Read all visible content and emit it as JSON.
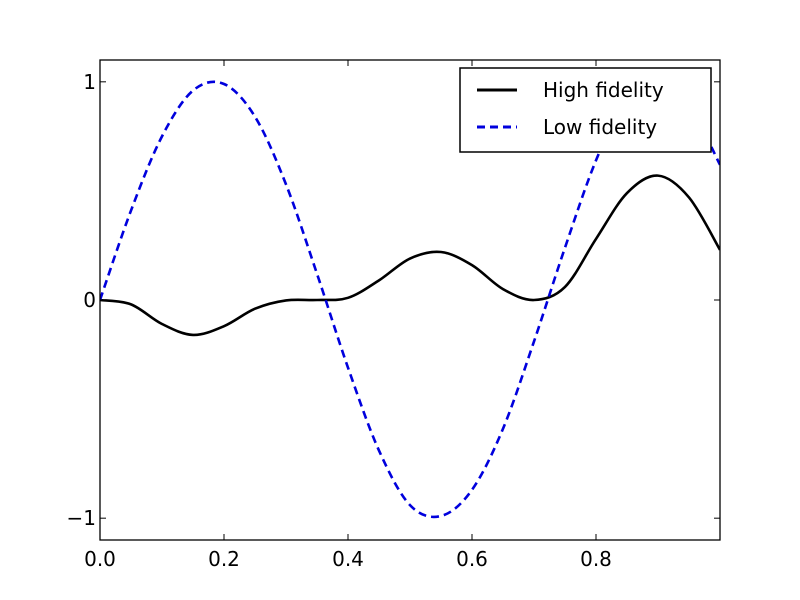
{
  "chart_data": {
    "type": "line",
    "title": "",
    "xlabel": "",
    "ylabel": "",
    "xlim": [
      0.0,
      1.0
    ],
    "ylim": [
      -1.1,
      1.1
    ],
    "grid": false,
    "legend_position": "top-right",
    "x_ticks": [
      {
        "value": 0.0,
        "label": "0.0"
      },
      {
        "value": 0.2,
        "label": "0.2"
      },
      {
        "value": 0.4,
        "label": "0.4"
      },
      {
        "value": 0.6,
        "label": "0.6"
      },
      {
        "value": 0.8,
        "label": "0.8"
      }
    ],
    "y_ticks": [
      {
        "value": -1,
        "label": "−1"
      },
      {
        "value": 0,
        "label": "0"
      },
      {
        "value": 1,
        "label": "1"
      }
    ],
    "x": [
      0.0,
      0.05,
      0.1,
      0.15,
      0.2,
      0.25,
      0.3,
      0.35,
      0.4,
      0.45,
      0.5,
      0.55,
      0.6,
      0.65,
      0.7,
      0.75,
      0.8,
      0.85,
      0.9,
      0.95,
      1.0
    ],
    "series": [
      {
        "name": "High fidelity",
        "color": "#000000",
        "style": "solid",
        "values": [
          0.0,
          -0.02,
          -0.11,
          -0.16,
          -0.12,
          -0.04,
          -0.002,
          0.0,
          0.01,
          0.09,
          0.19,
          0.22,
          0.16,
          0.05,
          0.0,
          0.06,
          0.28,
          0.49,
          0.57,
          0.47,
          0.23
        ]
      },
      {
        "name": "Low fidelity",
        "color": "#0000dd",
        "style": "dashed",
        "values": [
          0.0,
          0.41,
          0.75,
          0.96,
          0.99,
          0.84,
          0.53,
          0.12,
          -0.31,
          -0.69,
          -0.94,
          -0.99,
          -0.87,
          -0.59,
          -0.19,
          0.24,
          0.64,
          0.93,
          1.0,
          0.89,
          0.62
        ]
      }
    ]
  }
}
